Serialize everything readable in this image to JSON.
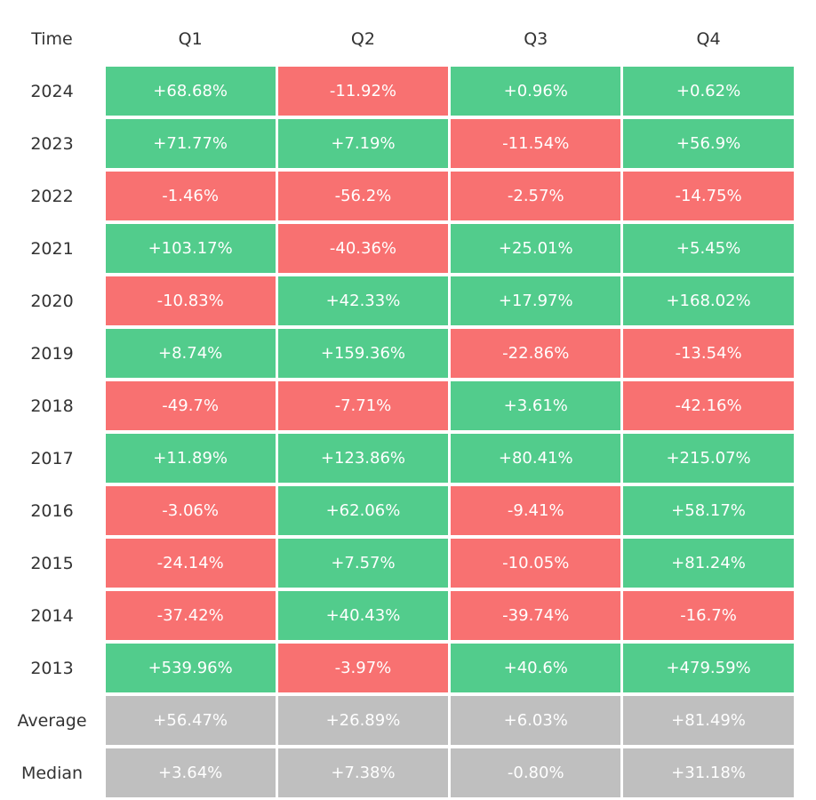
{
  "table": {
    "header": [
      "Time",
      "Q1",
      "Q2",
      "Q3",
      "Q4"
    ],
    "rows": [
      [
        "2024",
        "+68.68%",
        "-11.92%",
        "+0.96%",
        "+0.62%"
      ],
      [
        "2023",
        "+71.77%",
        "+7.19%",
        "-11.54%",
        "+56.9%"
      ],
      [
        "2022",
        "-1.46%",
        "-56.2%",
        "-2.57%",
        "-14.75%"
      ],
      [
        "2021",
        "+103.17%",
        "-40.36%",
        "+25.01%",
        "+5.45%"
      ],
      [
        "2020",
        "-10.83%",
        "+42.33%",
        "+17.97%",
        "+168.02%"
      ],
      [
        "2019",
        "+8.74%",
        "+159.36%",
        "-22.86%",
        "-13.54%"
      ],
      [
        "2018",
        "-49.7%",
        "-7.71%",
        "+3.61%",
        "-42.16%"
      ],
      [
        "2017",
        "+11.89%",
        "+123.86%",
        "+80.41%",
        "+215.07%"
      ],
      [
        "2016",
        "-3.06%",
        "+62.06%",
        "-9.41%",
        "+58.17%"
      ],
      [
        "2015",
        "-24.14%",
        "+7.57%",
        "-10.05%",
        "+81.24%"
      ],
      [
        "2014",
        "-37.42%",
        "+40.43%",
        "-39.74%",
        "-16.7%"
      ],
      [
        "2013",
        "+539.96%",
        "-3.97%",
        "+40.6%",
        "+479.59%"
      ]
    ],
    "summary_rows": [
      [
        "Average",
        "+56.47%",
        "+26.89%",
        "+6.03%",
        "+81.49%"
      ],
      [
        "Median",
        "+3.64%",
        "+7.38%",
        "-0.80%",
        "+31.18%"
      ]
    ],
    "colors": {
      "up": "#52cc8c",
      "down": "#f87171",
      "summary": "#bfbfbf"
    }
  }
}
